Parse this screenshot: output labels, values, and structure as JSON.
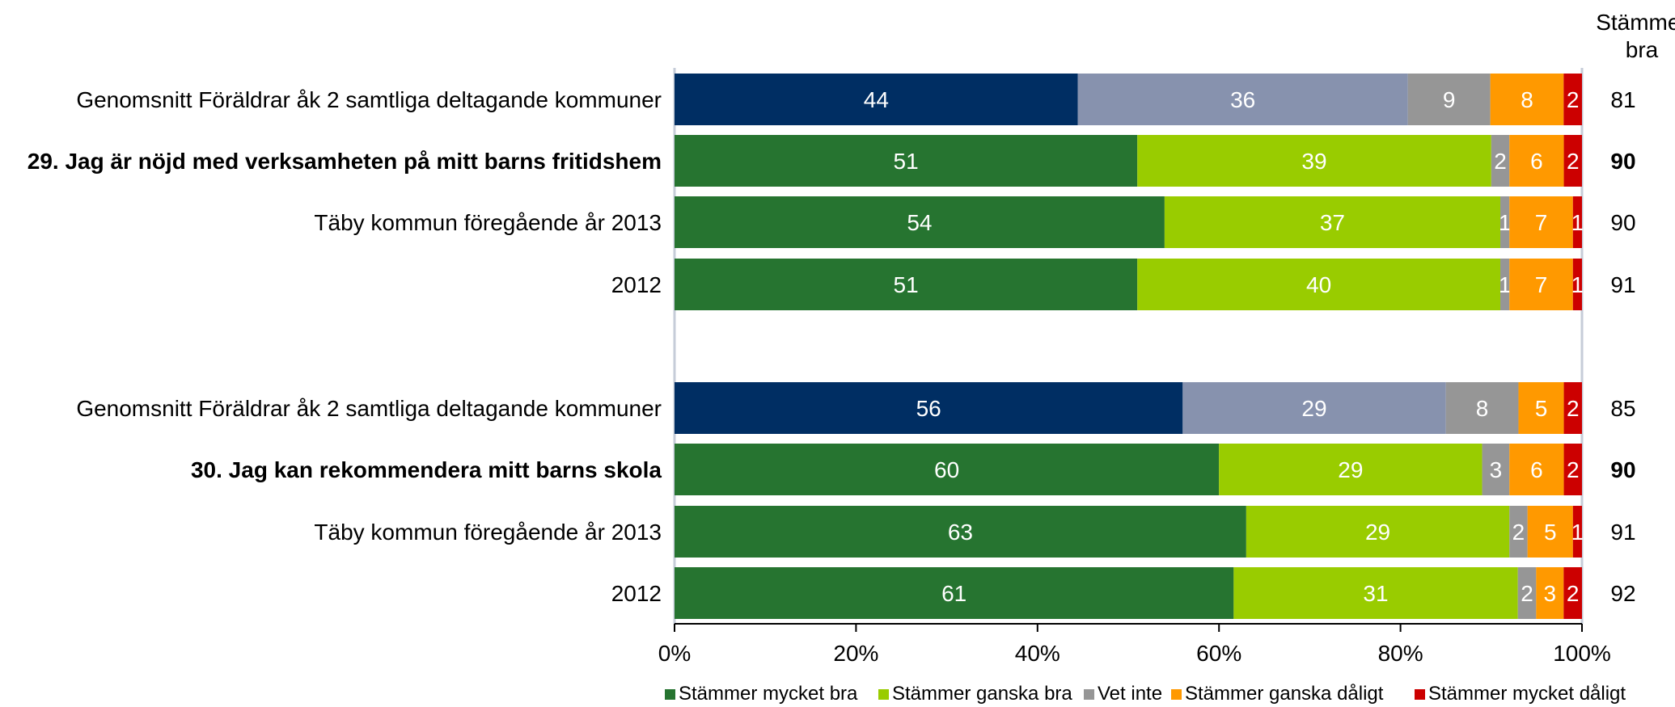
{
  "chart_data": {
    "type": "bar",
    "orientation": "horizontal",
    "stacked": true,
    "total_header": [
      "Stämmer",
      "bra"
    ],
    "x_ticks": [
      "0%",
      "20%",
      "40%",
      "60%",
      "80%",
      "100%"
    ],
    "xlim": [
      0,
      100
    ],
    "legend_position": "bottom",
    "series": [
      {
        "name": "Stämmer mycket bra",
        "color": "#267430"
      },
      {
        "name": "Stämmer ganska bra",
        "color": "#99CC00"
      },
      {
        "name": "Vet inte",
        "color": "#969696"
      },
      {
        "name": "Stämmer ganska dåligt",
        "color": "#FF9900"
      },
      {
        "name": "Stämmer mycket dåligt",
        "color": "#CC0000"
      }
    ],
    "rows": [
      {
        "category": "Genomsnitt Föräldrar åk 2 samtliga deltagande kommuner",
        "bold": false,
        "values": [
          44,
          36,
          9,
          8,
          2
        ],
        "labels": [
          "44",
          "36",
          "9",
          "8",
          "2"
        ],
        "colors": [
          "#002E63",
          "#8792AE",
          "#969696",
          "#FF9900",
          "#CC0000"
        ],
        "total": "81"
      },
      {
        "category": "29. Jag är nöjd med verksamheten på mitt barns fritidshem",
        "bold": true,
        "values": [
          51,
          39,
          2,
          6,
          2
        ],
        "labels": [
          "51",
          "39",
          "2",
          "6",
          "2"
        ],
        "total": "90"
      },
      {
        "category": "Täby kommun föregående år 2013",
        "bold": false,
        "values": [
          54,
          37,
          1,
          7,
          1
        ],
        "labels": [
          "54",
          "37",
          "1",
          "7",
          "1"
        ],
        "total": "90"
      },
      {
        "category": "2012",
        "bold": false,
        "values": [
          51,
          40,
          1,
          7,
          1
        ],
        "labels": [
          "51",
          "40",
          "1",
          "7",
          "1"
        ],
        "total": "91"
      },
      {
        "category": "Genomsnitt Föräldrar åk 2 samtliga deltagande kommuner",
        "bold": false,
        "values": [
          56,
          29,
          8,
          5,
          2
        ],
        "labels": [
          "56",
          "29",
          "8",
          "5",
          "2"
        ],
        "colors": [
          "#002E63",
          "#8792AE",
          "#969696",
          "#FF9900",
          "#CC0000"
        ],
        "total": "85"
      },
      {
        "category": "30. Jag kan rekommendera mitt barns skola",
        "bold": true,
        "values": [
          60,
          29,
          3,
          6,
          2
        ],
        "labels": [
          "60",
          "29",
          "3",
          "6",
          "2"
        ],
        "total": "90"
      },
      {
        "category": "Täby kommun föregående år 2013",
        "bold": false,
        "values": [
          63,
          29,
          2,
          5,
          1
        ],
        "labels": [
          "63",
          "29",
          "2",
          "5",
          "1"
        ],
        "total": "91"
      },
      {
        "category": "2012",
        "bold": false,
        "values": [
          61,
          31,
          2,
          3,
          2
        ],
        "labels": [
          "61",
          "31",
          "2",
          "3",
          "2"
        ],
        "total": "92"
      }
    ]
  }
}
